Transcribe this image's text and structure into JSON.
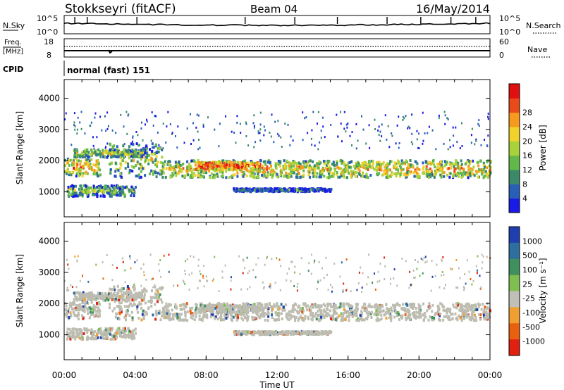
{
  "header": {
    "station": "Stokkseyri (fitACF)",
    "beam": "Beam 04",
    "date": "16/May/2014"
  },
  "nsky_panel": {
    "left_label": "N.Sky",
    "right_label": "N.Search",
    "left_ticks": [
      "10^5",
      "10^0"
    ],
    "right_ticks": [
      "10^5",
      "10^0"
    ]
  },
  "freq_panel": {
    "left_label_top": "Freq.",
    "left_label_bottom": "[MHz]",
    "right_label": "Nave",
    "left_ticks": [
      "18",
      "8"
    ],
    "right_ticks": [
      "60",
      "0"
    ]
  },
  "cpid": {
    "label": "CPID",
    "value": "normal (fast) 151"
  },
  "xaxis": {
    "label": "Time UT",
    "ticks": [
      "00:00",
      "04:00",
      "08:00",
      "12:00",
      "16:00",
      "20:00",
      "00:00"
    ]
  },
  "chart_data": [
    {
      "type": "heatmap",
      "name": "power",
      "ylabel": "Slant Range [km]",
      "yticks": [
        1000,
        2000,
        3000,
        4000
      ],
      "ylim": [
        200,
        4600
      ],
      "xlim_hours": [
        0,
        24
      ],
      "colorbar_label": "Power [dB]",
      "colorbar_ticks": [
        "4",
        "8",
        "12",
        "16",
        "20",
        "24",
        "28"
      ],
      "colors": [
        "#1a1ae6",
        "#2a5fb8",
        "#3a8a6a",
        "#63b84a",
        "#a8d13a",
        "#f0d22a",
        "#f59a1f",
        "#e84a1a",
        "#e01010"
      ],
      "echo_bands": [
        {
          "t": [
            0,
            2.0
          ],
          "range": [
            1550,
            2100
          ],
          "level": 0.7
        },
        {
          "t": [
            0.5,
            4.5
          ],
          "range": [
            2150,
            2400
          ],
          "level": 0.55
        },
        {
          "t": [
            2.5,
            5.5
          ],
          "range": [
            1500,
            2600
          ],
          "level": 0.5
        },
        {
          "t": [
            5.5,
            24
          ],
          "range": [
            1500,
            2050
          ],
          "level": 0.65
        },
        {
          "t": [
            7.5,
            11
          ],
          "range": [
            1750,
            2000
          ],
          "level": 0.9
        },
        {
          "t": [
            9.5,
            15
          ],
          "range": [
            1050,
            1150
          ],
          "level": 0.3
        },
        {
          "t": [
            0.1,
            4
          ],
          "range": [
            900,
            1250
          ],
          "level": 0.45
        }
      ]
    },
    {
      "type": "heatmap",
      "name": "velocity",
      "ylabel": "Slant Range [km]",
      "yticks": [
        1000,
        2000,
        3000,
        4000
      ],
      "ylim": [
        200,
        4600
      ],
      "xlim_hours": [
        0,
        24
      ],
      "colorbar_label": "Velocity [m s⁻¹]",
      "colorbar_ticks": [
        "1000",
        "500",
        "100",
        "25",
        "-25",
        "-100",
        "-500",
        "-1000"
      ],
      "colors": [
        "#1f3fb0",
        "#2f6f9f",
        "#3f8f5f",
        "#7fbf4f",
        "#c0c0b8",
        "#f0a030",
        "#e86010",
        "#e02010"
      ],
      "ground_scatter_color": "#bcbcb0"
    }
  ]
}
